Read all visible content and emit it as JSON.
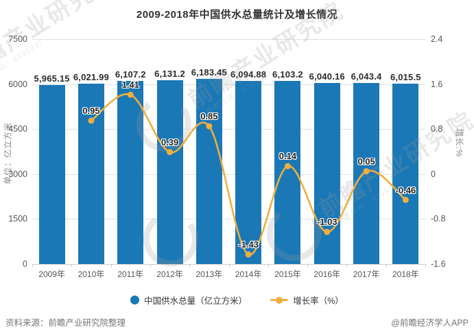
{
  "title": "2009-2018年中国供水总量统计及增长情况",
  "chart_data": {
    "type": "bar",
    "subtype": "bar+line dual axis",
    "categories": [
      "2009年",
      "2010年",
      "2011年",
      "2012年",
      "2013年",
      "2014年",
      "2015年",
      "2016年",
      "2017年",
      "2018年"
    ],
    "series": [
      {
        "name": "中国供水总量（亿立方米）",
        "type": "bar",
        "axis": "left",
        "values": [
          5965.15,
          6021.99,
          6107.2,
          6131.2,
          6183.45,
          6094.88,
          6103.2,
          6040.16,
          6043.4,
          6015.5
        ],
        "labels": [
          "5,965.15",
          "6,021.99",
          "6,107.2",
          "6,131.2",
          "6,183.45",
          "6,094.88",
          "6,103.2",
          "6,040.16",
          "6,043.4",
          "6,015.5"
        ]
      },
      {
        "name": "增长率（%）",
        "type": "line",
        "axis": "right",
        "values": [
          null,
          0.95,
          1.41,
          0.39,
          0.85,
          -1.43,
          0.14,
          -1.03,
          0.05,
          -0.46
        ],
        "labels": [
          "",
          "0.95",
          "1.41",
          "0.39",
          "0.85",
          "-1.43",
          "0.14",
          "-1.03",
          "0.05",
          "-0.46"
        ]
      }
    ],
    "left_axis": {
      "name": "单位：亿立方米",
      "min": 0,
      "max": 7500,
      "ticks": [
        "7500",
        "6000",
        "4500",
        "3000",
        "1500",
        "0"
      ]
    },
    "right_axis": {
      "name": "增长:%",
      "min": -1.6,
      "max": 2.4,
      "ticks": [
        "2.4",
        "1.6",
        "0.8",
        "0",
        "-0.8",
        "-1.6"
      ]
    },
    "grid": true,
    "legend_position": "bottom",
    "colors": {
      "bar": "#1b78b6",
      "line": "#efaf3f",
      "label": "#222222",
      "grid": "#e0e0e0"
    }
  },
  "legend": {
    "items": [
      {
        "label": "中国供水总量（亿立方米）",
        "marker": "circle",
        "color": "#1b78b6"
      },
      {
        "label": "增长率（%）",
        "marker": "line-dot",
        "color": "#efaf3f"
      }
    ]
  },
  "footer": {
    "source": "资料来源：前瞻产业研究院整理",
    "credit": "@前瞻经济学人APP"
  },
  "watermark": {
    "brand": "前瞻产业研究院",
    "sub": "（股票代码：839599）"
  }
}
